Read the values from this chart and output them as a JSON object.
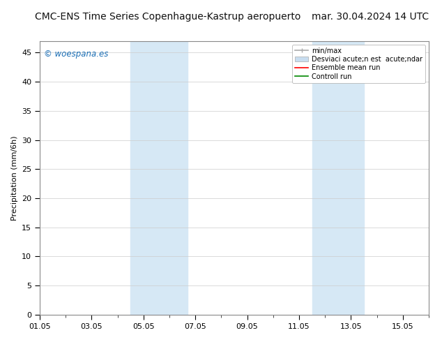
{
  "title_left": "CMC-ENS Time Series Copenhague-Kastrup aeropuerto",
  "title_right": "mar. 30.04.2024 14 UTC",
  "ylabel": "Precipitation (mm/6h)",
  "ylim": [
    0,
    47
  ],
  "yticks": [
    0,
    5,
    10,
    15,
    20,
    25,
    30,
    35,
    40,
    45
  ],
  "xtick_labels": [
    "01.05",
    "03.05",
    "05.05",
    "07.05",
    "09.05",
    "11.05",
    "13.05",
    "15.05"
  ],
  "xtick_positions": [
    0,
    2,
    4,
    6,
    8,
    10,
    12,
    14
  ],
  "xlim": [
    0,
    15
  ],
  "shaded_regions": [
    {
      "xstart": 3.5,
      "xend": 5.7
    },
    {
      "xstart": 10.5,
      "xend": 12.5
    }
  ],
  "shade_color": "#d6e8f5",
  "bg_color": "#ffffff",
  "watermark": "© woespana.es",
  "watermark_color": "#1a6eb5",
  "grid_color": "#cccccc",
  "title_fontsize": 10,
  "axis_fontsize": 8,
  "tick_fontsize": 8,
  "legend_label_minmax": "min/max",
  "legend_label_desv": "Desviaci acute;n est  acute;ndar",
  "legend_label_ensemble": "Ensemble mean run",
  "legend_label_control": "Controll run",
  "legend_color_minmax": "#aaaaaa",
  "legend_color_desv": "#c8ddf0",
  "legend_color_ensemble": "#ff0000",
  "legend_color_control": "#008800"
}
